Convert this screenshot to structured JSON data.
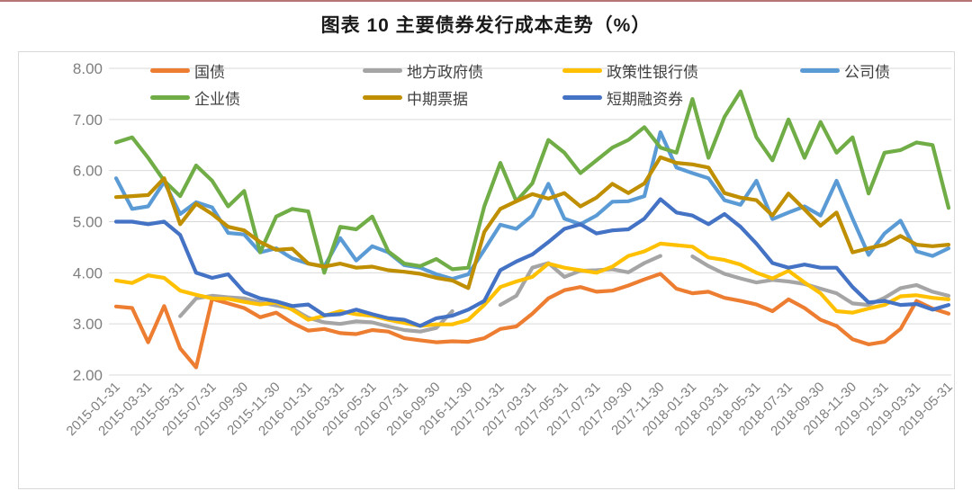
{
  "title": "图表 10 主要债券发行成本走势（%）",
  "chart_data": {
    "type": "line",
    "x": [
      "2015-01-31",
      "2015-02-28",
      "2015-03-31",
      "2015-04-30",
      "2015-05-31",
      "2015-06-30",
      "2015-07-31",
      "2015-08-31",
      "2015-09-30",
      "2015-10-31",
      "2015-11-30",
      "2015-12-31",
      "2016-01-31",
      "2016-02-29",
      "2016-03-31",
      "2016-04-30",
      "2016-05-31",
      "2016-06-30",
      "2016-07-31",
      "2016-08-31",
      "2016-09-30",
      "2016-10-31",
      "2016-11-30",
      "2016-12-31",
      "2017-01-31",
      "2017-02-28",
      "2017-03-31",
      "2017-04-30",
      "2017-05-31",
      "2017-06-30",
      "2017-07-31",
      "2017-08-31",
      "2017-09-30",
      "2017-10-31",
      "2017-11-30",
      "2017-12-31",
      "2018-01-31",
      "2018-02-28",
      "2018-03-31",
      "2018-04-30",
      "2018-05-31",
      "2018-06-30",
      "2018-07-31",
      "2018-08-31",
      "2018-09-30",
      "2018-10-31",
      "2018-11-30",
      "2018-12-31",
      "2019-01-31",
      "2019-02-28",
      "2019-03-31",
      "2019-04-30",
      "2019-05-31"
    ],
    "x_tick_labels": [
      "2015-01-31",
      "2015-03-31",
      "2015-05-31",
      "2015-07-31",
      "2015-09-30",
      "2015-11-30",
      "2016-01-31",
      "2016-03-31",
      "2016-05-31",
      "2016-07-31",
      "2016-09-30",
      "2016-11-30",
      "2017-01-31",
      "2017-03-31",
      "2017-05-31",
      "2017-07-31",
      "2017-09-30",
      "2017-11-30",
      "2018-01-31",
      "2018-03-31",
      "2018-05-31",
      "2018-07-31",
      "2018-09-30",
      "2018-11-30",
      "2019-01-31",
      "2019-03-31",
      "2019-05-31"
    ],
    "x_tick_every": 2,
    "y_ticks": [
      "8.00",
      "7.00",
      "6.00",
      "5.00",
      "4.00",
      "3.00",
      "2.00"
    ],
    "ylim": [
      2.0,
      8.0
    ],
    "grid": true,
    "legend_position": "top",
    "axis_color": "#7f7f7f",
    "grid_color": "#d9d9d9",
    "series": [
      {
        "name": "国债",
        "color": "#ED7D31",
        "values": [
          3.34,
          3.31,
          2.64,
          3.35,
          2.52,
          2.15,
          3.49,
          3.4,
          3.31,
          3.13,
          3.22,
          3.02,
          2.87,
          2.9,
          2.82,
          2.8,
          2.88,
          2.85,
          2.72,
          2.68,
          2.64,
          2.66,
          2.65,
          2.72,
          2.9,
          2.95,
          3.2,
          3.5,
          3.66,
          3.72,
          3.63,
          3.65,
          3.75,
          3.87,
          3.98,
          3.69,
          3.6,
          3.63,
          3.51,
          3.45,
          3.38,
          3.25,
          3.48,
          3.31,
          3.08,
          2.96,
          2.7,
          2.6,
          2.65,
          2.9,
          3.45,
          3.3,
          3.2
        ]
      },
      {
        "name": "地方政府债",
        "color": "#A5A5A5",
        "values": [
          null,
          null,
          null,
          null,
          3.15,
          3.5,
          3.55,
          3.52,
          3.5,
          3.42,
          3.36,
          3.3,
          3.12,
          3.03,
          3.0,
          3.05,
          3.03,
          2.95,
          2.88,
          2.85,
          2.92,
          3.25,
          null,
          null,
          3.37,
          3.55,
          4.1,
          4.19,
          3.92,
          4.04,
          4.05,
          4.07,
          4.01,
          4.19,
          4.33,
          null,
          4.32,
          4.13,
          3.98,
          3.89,
          3.81,
          3.86,
          3.83,
          3.78,
          3.69,
          3.6,
          3.4,
          3.37,
          3.51,
          3.7,
          3.76,
          3.63,
          3.55
        ]
      },
      {
        "name": "政策性银行债",
        "color": "#FFC000",
        "values": [
          3.85,
          3.8,
          3.95,
          3.9,
          3.65,
          3.57,
          3.5,
          3.49,
          3.43,
          3.38,
          3.42,
          3.28,
          3.08,
          3.16,
          3.25,
          3.19,
          3.16,
          3.08,
          3.02,
          2.96,
          2.99,
          2.99,
          3.08,
          3.37,
          3.72,
          3.83,
          3.92,
          4.18,
          4.1,
          4.05,
          4.0,
          4.12,
          4.33,
          4.42,
          4.57,
          4.54,
          4.51,
          4.3,
          4.25,
          4.16,
          4.0,
          3.89,
          4.04,
          3.81,
          3.6,
          3.25,
          3.22,
          3.3,
          3.37,
          3.54,
          3.56,
          3.51,
          3.48
        ]
      },
      {
        "name": "公司债",
        "color": "#5B9BD5",
        "values": [
          5.85,
          5.25,
          5.3,
          5.78,
          5.15,
          5.38,
          5.28,
          4.78,
          4.75,
          4.4,
          4.48,
          4.28,
          4.18,
          4.12,
          4.68,
          4.24,
          4.52,
          4.4,
          4.15,
          4.1,
          3.97,
          3.88,
          3.97,
          4.45,
          4.94,
          4.86,
          5.12,
          5.74,
          5.06,
          4.95,
          5.12,
          5.39,
          5.4,
          5.5,
          6.75,
          6.06,
          5.95,
          5.85,
          5.42,
          5.33,
          5.8,
          5.05,
          5.18,
          5.3,
          5.12,
          5.8,
          5.06,
          4.35,
          4.77,
          5.02,
          4.42,
          4.33,
          4.48
        ]
      },
      {
        "name": "企业债",
        "color": "#70AD47",
        "values": [
          6.55,
          6.65,
          6.25,
          5.8,
          5.5,
          6.1,
          5.8,
          5.3,
          5.6,
          4.4,
          5.1,
          5.25,
          5.2,
          4.0,
          4.9,
          4.85,
          5.1,
          4.42,
          4.18,
          4.13,
          4.27,
          4.07,
          4.1,
          5.3,
          6.15,
          5.4,
          5.75,
          6.6,
          6.35,
          5.95,
          6.2,
          6.45,
          6.6,
          6.85,
          6.45,
          6.35,
          7.4,
          6.25,
          7.05,
          7.55,
          6.65,
          6.2,
          7.0,
          6.25,
          6.95,
          6.35,
          6.65,
          5.55,
          6.35,
          6.4,
          6.55,
          6.5,
          5.27
        ]
      },
      {
        "name": "中期票据",
        "color": "#BF8F00",
        "values": [
          5.48,
          5.5,
          5.52,
          5.85,
          4.95,
          5.35,
          5.15,
          4.9,
          4.83,
          4.6,
          4.45,
          4.47,
          4.18,
          4.12,
          4.18,
          4.1,
          4.12,
          4.05,
          4.02,
          3.98,
          3.9,
          3.85,
          3.7,
          4.8,
          5.25,
          5.4,
          5.54,
          5.45,
          5.56,
          5.3,
          5.47,
          5.74,
          5.56,
          5.75,
          6.26,
          6.15,
          6.12,
          6.06,
          5.56,
          5.47,
          5.42,
          5.12,
          5.55,
          5.24,
          4.92,
          5.18,
          4.4,
          4.48,
          4.55,
          4.72,
          4.55,
          4.52,
          4.55
        ]
      },
      {
        "name": "短期融资券",
        "color": "#4472C4",
        "values": [
          5.0,
          5.0,
          4.95,
          5.0,
          4.74,
          4.0,
          3.9,
          3.97,
          3.62,
          3.5,
          3.44,
          3.35,
          3.38,
          3.17,
          3.19,
          3.28,
          3.19,
          3.11,
          3.08,
          2.96,
          3.11,
          3.16,
          3.28,
          3.45,
          4.05,
          4.22,
          4.36,
          4.6,
          4.86,
          4.95,
          4.77,
          4.83,
          4.85,
          5.06,
          5.44,
          5.18,
          5.12,
          4.95,
          5.15,
          4.9,
          4.57,
          4.19,
          4.1,
          4.16,
          4.1,
          4.1,
          3.72,
          3.42,
          3.45,
          3.37,
          3.39,
          3.28,
          3.37
        ]
      }
    ]
  }
}
